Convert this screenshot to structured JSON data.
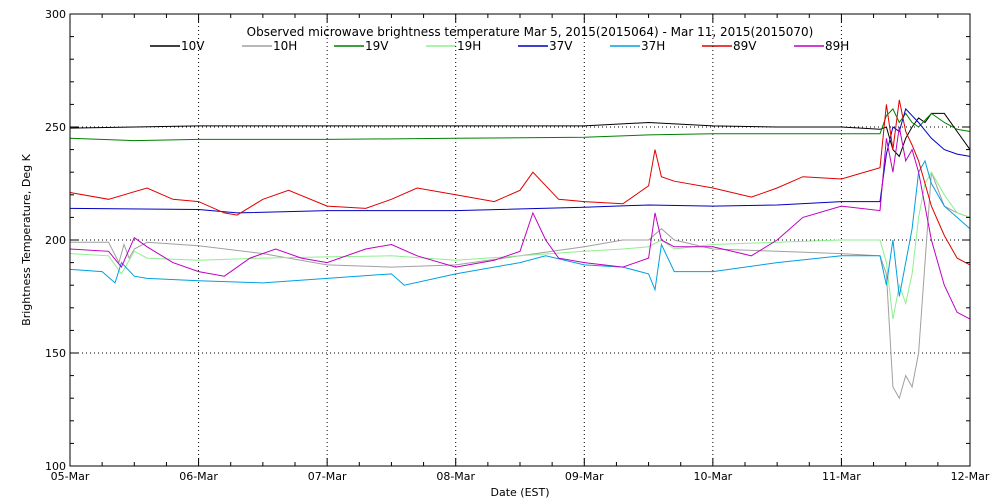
{
  "chart_data": {
    "type": "line",
    "title": "Observed microwave brightness temperature Mar  5, 2015(2015064) - Mar 11, 2015(2015070)",
    "xlabel": "Date (EST)",
    "ylabel": "Brightness Temperature, Deg K",
    "xlim": [
      0,
      7
    ],
    "ylim": [
      100,
      300
    ],
    "x_unit": "days since 05-Mar 00:00",
    "x_tick_values": [
      0,
      1,
      2,
      3,
      4,
      5,
      6,
      7
    ],
    "x_tick_labels": [
      "05-Mar",
      "06-Mar",
      "07-Mar",
      "08-Mar",
      "09-Mar",
      "10-Mar",
      "11-Mar",
      "12-Mar"
    ],
    "y_tick_values": [
      100,
      150,
      200,
      250,
      300
    ],
    "y_tick_labels": [
      "100",
      "150",
      "200",
      "250",
      "300"
    ],
    "grid": "dotted",
    "legend_position": "top",
    "series": [
      {
        "name": "10V",
        "color": "#000000",
        "x": [
          0,
          0.5,
          1,
          2,
          3,
          3.5,
          4,
          4.5,
          5,
          5.5,
          6,
          6.3,
          6.35,
          6.4,
          6.45,
          6.5,
          6.55,
          6.6,
          6.65,
          6.7,
          6.8,
          6.9,
          7
        ],
        "y": [
          249.5,
          250,
          250.5,
          250.5,
          250.5,
          250.5,
          250.5,
          252,
          250.5,
          250,
          250,
          249,
          250,
          240,
          237,
          245,
          250,
          254,
          252,
          256,
          256,
          248,
          240
        ]
      },
      {
        "name": "10H",
        "color": "#a0a0a0",
        "x": [
          0,
          0.3,
          0.38,
          0.42,
          0.46,
          0.5,
          0.6,
          1,
          1.5,
          2,
          2.5,
          3,
          3.5,
          4,
          4.3,
          4.5,
          4.6,
          4.7,
          5,
          5.5,
          6,
          6.3,
          6.35,
          6.4,
          6.45,
          6.5,
          6.55,
          6.6,
          6.65,
          6.7,
          6.8,
          6.9,
          7
        ],
        "y": [
          199,
          199,
          190,
          198,
          192,
          196,
          199,
          197.5,
          194,
          189,
          188,
          189,
          193,
          197,
          200,
          200,
          205,
          200,
          196,
          195,
          194,
          193,
          185,
          135,
          130,
          140,
          135,
          150,
          190,
          230,
          215,
          212,
          210
        ]
      },
      {
        "name": "19V",
        "color": "#008000",
        "x": [
          0,
          0.5,
          1,
          2,
          3,
          4,
          4.5,
          5,
          5.5,
          6,
          6.3,
          6.35,
          6.4,
          6.45,
          6.5,
          6.55,
          6.6,
          6.7,
          6.8,
          6.9,
          7
        ],
        "y": [
          245,
          244,
          244.5,
          244.5,
          245,
          245.5,
          246.5,
          247,
          247,
          247,
          247,
          255,
          258,
          252,
          256,
          252,
          250,
          256,
          252,
          249,
          248
        ]
      },
      {
        "name": "19H",
        "color": "#90ee90",
        "x": [
          0,
          0.3,
          0.4,
          0.5,
          0.6,
          1,
          1.5,
          2,
          2.5,
          3,
          3.5,
          4,
          4.3,
          4.5,
          4.6,
          4.7,
          5,
          5.5,
          6,
          6.3,
          6.35,
          6.4,
          6.45,
          6.5,
          6.55,
          6.6,
          6.65,
          6.7,
          6.8,
          6.9,
          7
        ],
        "y": [
          194,
          193,
          185,
          195,
          192,
          191,
          192,
          192.5,
          193,
          191,
          193,
          195,
          196,
          197,
          200,
          196,
          198,
          199,
          200,
          200,
          190,
          165,
          180,
          172,
          185,
          210,
          225,
          230,
          220,
          212,
          210
        ]
      },
      {
        "name": "37V",
        "color": "#0000c0",
        "x": [
          0,
          1,
          1.3,
          2,
          3,
          4,
          4.5,
          5,
          5.5,
          6,
          6.3,
          6.35,
          6.4,
          6.45,
          6.5,
          6.55,
          6.6,
          6.7,
          6.8,
          6.9,
          7
        ],
        "y": [
          214,
          213.5,
          212,
          213,
          213,
          214.5,
          215.5,
          215,
          215.5,
          217,
          217,
          238,
          250,
          248,
          258,
          255,
          252,
          245,
          240,
          238,
          237
        ]
      },
      {
        "name": "37H",
        "color": "#00a0e0",
        "x": [
          0,
          0.25,
          0.35,
          0.4,
          0.5,
          0.6,
          1,
          1.5,
          2,
          2.5,
          2.6,
          3,
          3.5,
          3.7,
          4,
          4.3,
          4.5,
          4.55,
          4.6,
          4.7,
          5,
          5.5,
          6,
          6.3,
          6.35,
          6.4,
          6.45,
          6.5,
          6.55,
          6.6,
          6.65,
          6.7,
          6.8,
          6.9,
          7
        ],
        "y": [
          187,
          186,
          181,
          190,
          184,
          183,
          182,
          181,
          183,
          185,
          180,
          185,
          190,
          193,
          189,
          188,
          185,
          178,
          198,
          186,
          186,
          190,
          193,
          193,
          180,
          200,
          175,
          190,
          205,
          230,
          235,
          225,
          215,
          210,
          205
        ]
      },
      {
        "name": "89V",
        "color": "#e00000",
        "x": [
          0,
          0.3,
          0.6,
          0.8,
          1,
          1.2,
          1.3,
          1.5,
          1.7,
          2,
          2.3,
          2.5,
          2.7,
          3,
          3.3,
          3.5,
          3.6,
          3.8,
          4,
          4.3,
          4.5,
          4.55,
          4.6,
          4.7,
          5,
          5.3,
          5.5,
          5.7,
          6,
          6.3,
          6.35,
          6.4,
          6.45,
          6.5,
          6.55,
          6.6,
          6.7,
          6.8,
          6.9,
          7
        ],
        "y": [
          221,
          218,
          223,
          218,
          217,
          212,
          211,
          218,
          222,
          215,
          214,
          218,
          223,
          220,
          217,
          222,
          230,
          218,
          217,
          216,
          224,
          240,
          228,
          226,
          223,
          219,
          223,
          228,
          227,
          232,
          260,
          240,
          262,
          248,
          242,
          235,
          215,
          202,
          192,
          189
        ]
      },
      {
        "name": "89H",
        "color": "#c000c0",
        "x": [
          0,
          0.3,
          0.4,
          0.5,
          0.6,
          0.8,
          1,
          1.2,
          1.4,
          1.6,
          1.8,
          2,
          2.3,
          2.5,
          2.7,
          3,
          3.3,
          3.5,
          3.6,
          3.7,
          3.8,
          4,
          4.3,
          4.5,
          4.55,
          4.6,
          4.7,
          5,
          5.3,
          5.5,
          5.7,
          6,
          6.3,
          6.35,
          6.4,
          6.45,
          6.5,
          6.55,
          6.6,
          6.7,
          6.8,
          6.9,
          7
        ],
        "y": [
          196,
          195,
          188,
          201,
          197,
          190,
          186,
          184,
          192,
          196,
          192,
          190,
          196,
          198,
          193,
          188,
          191,
          195,
          212,
          200,
          192,
          190,
          188,
          192,
          212,
          200,
          197,
          197,
          193,
          200,
          210,
          215,
          213,
          245,
          230,
          250,
          235,
          240,
          230,
          200,
          180,
          168,
          165
        ]
      }
    ]
  }
}
